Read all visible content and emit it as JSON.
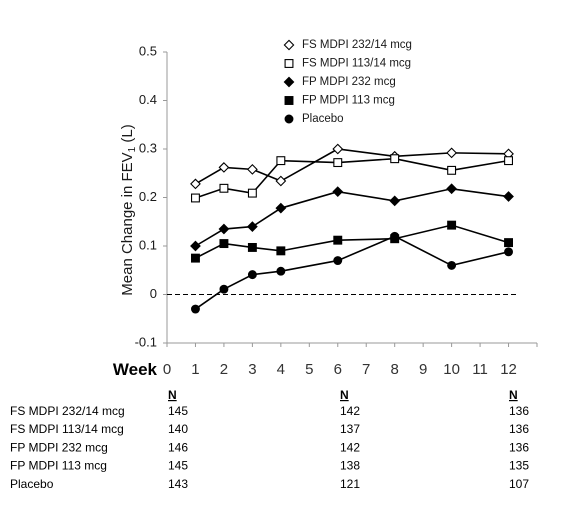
{
  "chart_data": {
    "type": "line",
    "ylabel": "Mean Change in FEV",
    "ylabel_sub": "1",
    "ylabel_unit": " (L)",
    "x_axis_title": "Week",
    "x_ticks": [
      "0",
      "1",
      "2",
      "3",
      "4",
      "5",
      "6",
      "7",
      "8",
      "9",
      "10",
      "11",
      "12"
    ],
    "xlim": [
      0,
      13
    ],
    "ylim": [
      -0.1,
      0.5
    ],
    "y_ticks": [
      "-0.1",
      "0",
      "0.1",
      "0.2",
      "0.3",
      "0.4",
      "0.5"
    ],
    "y_tick_values": [
      -0.1,
      0,
      0.1,
      0.2,
      0.3,
      0.4,
      0.5
    ],
    "reference_line": {
      "y": 0,
      "style": "dashed"
    },
    "legend_position": "top-right",
    "series": [
      {
        "name": "FS MDPI 232/14 mcg",
        "marker": "diamond-open",
        "color": "#000000",
        "x": [
          1,
          2,
          3,
          4,
          6,
          8,
          10,
          12
        ],
        "values": [
          0.228,
          0.262,
          0.258,
          0.234,
          0.3,
          0.285,
          0.292,
          0.29
        ]
      },
      {
        "name": "FS MDPI 113/14 mcg",
        "marker": "square-open",
        "color": "#000000",
        "x": [
          1,
          2,
          3,
          4,
          6,
          8,
          10,
          12
        ],
        "values": [
          0.199,
          0.219,
          0.209,
          0.276,
          0.272,
          0.28,
          0.256,
          0.276
        ]
      },
      {
        "name": "FP MDPI 232 mcg",
        "marker": "diamond-filled",
        "color": "#000000",
        "x": [
          1,
          2,
          3,
          4,
          6,
          8,
          10,
          12
        ],
        "values": [
          0.1,
          0.135,
          0.14,
          0.178,
          0.212,
          0.193,
          0.218,
          0.202
        ]
      },
      {
        "name": "FP MDPI 113 mcg",
        "marker": "square-filled",
        "color": "#000000",
        "x": [
          1,
          2,
          3,
          4,
          6,
          8,
          10,
          12
        ],
        "values": [
          0.075,
          0.105,
          0.097,
          0.09,
          0.112,
          0.115,
          0.143,
          0.107
        ]
      },
      {
        "name": "Placebo",
        "marker": "circle-filled",
        "color": "#000000",
        "x": [
          1,
          2,
          4,
          3,
          6,
          8,
          10,
          12
        ],
        "values": [
          -0.03,
          0.011,
          0.048,
          0.041,
          0.07,
          0.12,
          0.06,
          0.088
        ]
      }
    ],
    "n_table": {
      "header": "N",
      "columns_at_week": [
        1,
        6,
        12
      ],
      "rows": [
        {
          "label": "FS MDPI 232/14 mcg",
          "values": [
            "145",
            "142",
            "136"
          ]
        },
        {
          "label": "FS MDPI 113/14 mcg",
          "values": [
            "140",
            "137",
            "136"
          ]
        },
        {
          "label": "FP MDPI 232 mcg",
          "values": [
            "146",
            "142",
            "136"
          ]
        },
        {
          "label": "FP MDPI 113 mcg",
          "values": [
            "145",
            "138",
            "135"
          ]
        },
        {
          "label": "Placebo",
          "values": [
            "143",
            "121",
            "107"
          ]
        }
      ]
    }
  }
}
